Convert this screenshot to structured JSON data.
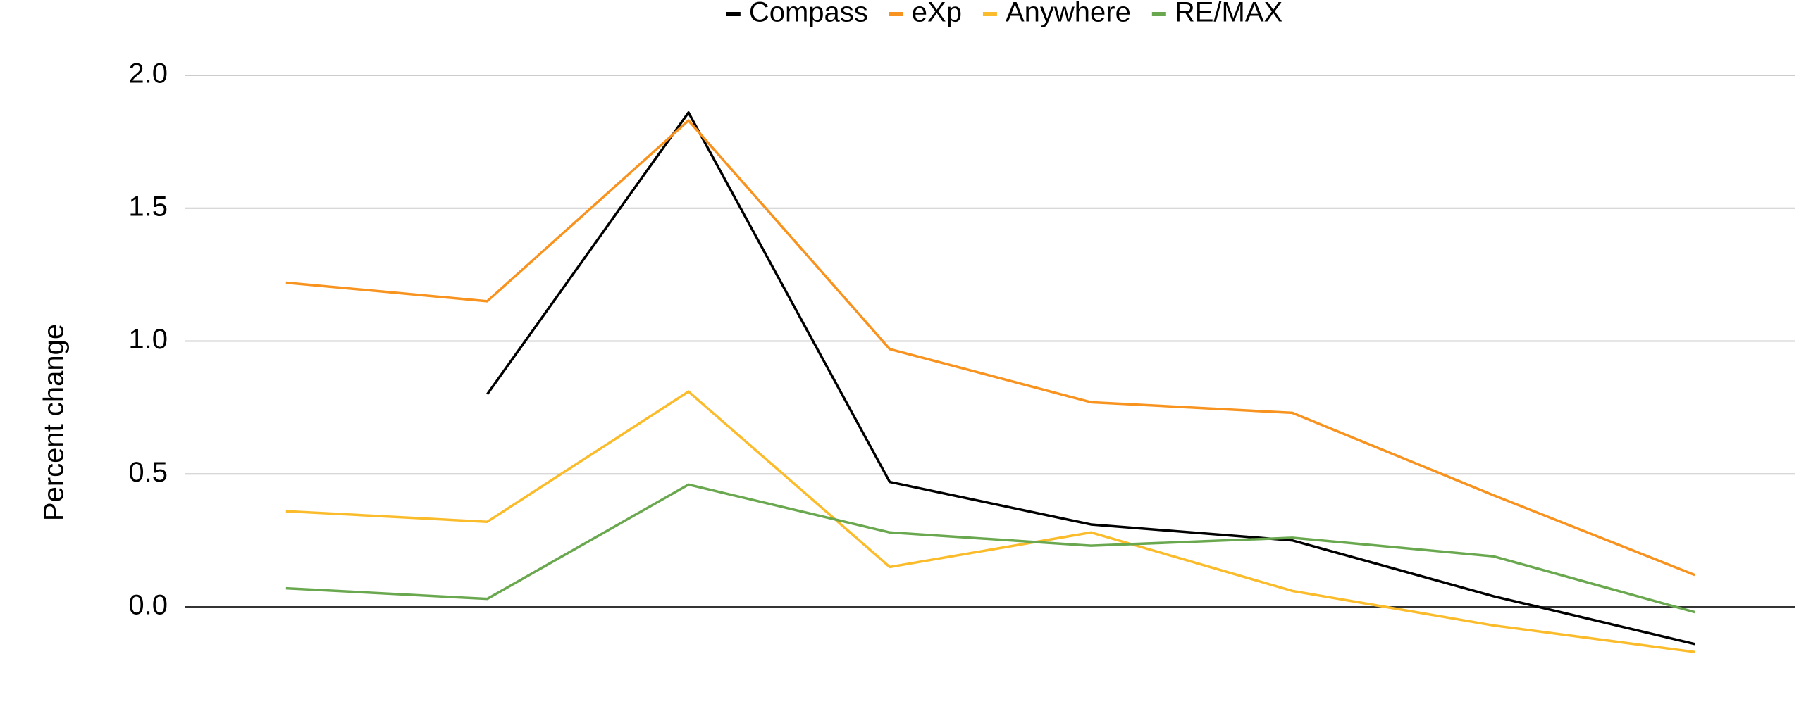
{
  "chart_data": {
    "type": "line",
    "y_label": "Percent change",
    "categories": [
      null,
      null,
      null,
      null,
      null,
      null,
      null,
      null
    ],
    "series": [
      {
        "name": "Compass",
        "color": "#000000",
        "values": [
          null,
          0.8,
          1.86,
          0.47,
          0.31,
          0.25,
          0.04,
          -0.14
        ]
      },
      {
        "name": "eXp",
        "color": "#f7931e",
        "values": [
          1.22,
          1.15,
          1.83,
          0.97,
          0.77,
          0.73,
          0.42,
          0.12
        ]
      },
      {
        "name": "Anywhere",
        "color": "#fbbc2c",
        "values": [
          0.36,
          0.32,
          0.81,
          0.15,
          0.28,
          0.06,
          -0.07,
          -0.17
        ]
      },
      {
        "name": "RE/MAX",
        "color": "#6aa84f",
        "values": [
          0.07,
          0.03,
          0.46,
          0.28,
          0.23,
          0.26,
          0.19,
          -0.02
        ]
      }
    ],
    "ylim": [
      -0.2,
      2.0
    ],
    "yticks": [
      {
        "value": 0,
        "label": "0.0"
      },
      {
        "value": 0.5,
        "label": "0.5"
      },
      {
        "value": 1,
        "label": "1.0"
      },
      {
        "value": 1.5,
        "label": "1.5"
      },
      {
        "value": 2,
        "label": "2.0"
      }
    ],
    "grid": true,
    "legend": "top"
  }
}
